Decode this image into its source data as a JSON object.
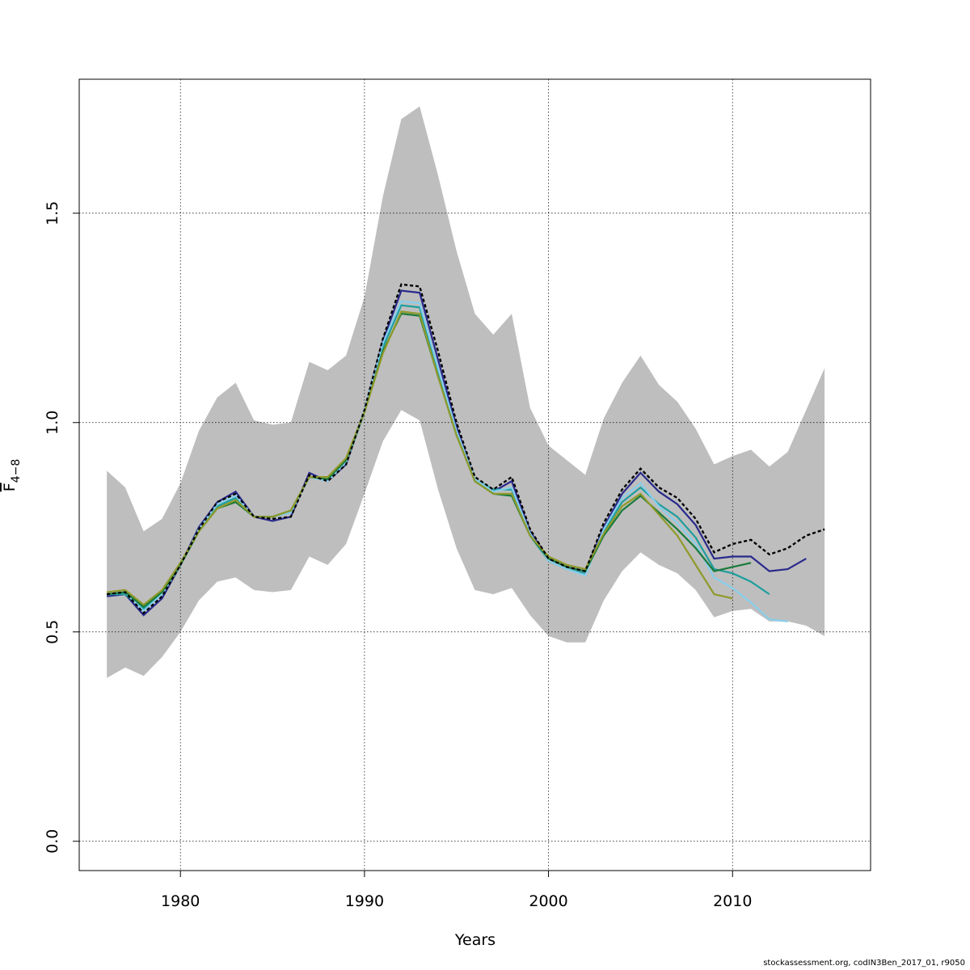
{
  "chart_data": {
    "type": "line",
    "title": "",
    "xlabel": "Years",
    "ylabel_main": "F",
    "ylabel_sub": "4−8",
    "xlim": [
      1974.5,
      2017.5
    ],
    "ylim": [
      -0.07,
      1.82
    ],
    "x_ticks": [
      1980,
      1990,
      2000,
      2010
    ],
    "x_tick_labels": [
      "1980",
      "1990",
      "2000",
      "2010"
    ],
    "y_ticks": [
      0.0,
      0.5,
      1.0,
      1.5
    ],
    "y_tick_labels": [
      "0.0",
      "0.5",
      "1.0",
      "1.5"
    ],
    "grid": true,
    "confidence_band": {
      "color": "#bebebe",
      "x": [
        1976,
        1977,
        1978,
        1979,
        1980,
        1981,
        1982,
        1983,
        1984,
        1985,
        1986,
        1987,
        1988,
        1989,
        1990,
        1991,
        1992,
        1993,
        1994,
        1995,
        1996,
        1997,
        1998,
        1999,
        2000,
        2001,
        2002,
        2003,
        2004,
        2005,
        2006,
        2007,
        2008,
        2009,
        2010,
        2011,
        2012,
        2013,
        2014,
        2015
      ],
      "upper": [
        0.885,
        0.845,
        0.74,
        0.77,
        0.855,
        0.98,
        1.06,
        1.095,
        1.005,
        0.995,
        1.0,
        1.145,
        1.125,
        1.16,
        1.3,
        1.54,
        1.725,
        1.755,
        1.59,
        1.41,
        1.26,
        1.21,
        1.26,
        1.035,
        0.945,
        0.91,
        0.875,
        1.01,
        1.095,
        1.16,
        1.09,
        1.05,
        0.985,
        0.9,
        0.92,
        0.935,
        0.895,
        0.93,
        1.03,
        1.13
      ],
      "lower": [
        0.39,
        0.415,
        0.395,
        0.44,
        0.5,
        0.575,
        0.62,
        0.63,
        0.6,
        0.595,
        0.6,
        0.68,
        0.66,
        0.71,
        0.83,
        0.955,
        1.03,
        1.005,
        0.84,
        0.7,
        0.6,
        0.59,
        0.605,
        0.54,
        0.49,
        0.475,
        0.475,
        0.575,
        0.645,
        0.69,
        0.66,
        0.64,
        0.6,
        0.535,
        0.55,
        0.555,
        0.525,
        0.525,
        0.515,
        0.49
      ]
    },
    "series": [
      {
        "color": "#000000",
        "dashed": true,
        "values_x": [
          1976,
          1977,
          1978,
          1979,
          1980,
          1981,
          1982,
          1983,
          1984,
          1985,
          1986,
          1987,
          1988,
          1989,
          1990,
          1991,
          1992,
          1993,
          1994,
          1995,
          1996,
          1997,
          1998,
          1999,
          2000,
          2001,
          2002,
          2003,
          2004,
          2005,
          2006,
          2007,
          2008,
          2009,
          2010,
          2011,
          2012,
          2013,
          2014,
          2015
        ],
        "values_y": [
          0.59,
          0.595,
          0.545,
          0.585,
          0.66,
          0.745,
          0.81,
          0.83,
          0.775,
          0.77,
          0.775,
          0.875,
          0.86,
          0.9,
          1.03,
          1.2,
          1.33,
          1.325,
          1.17,
          1.0,
          0.87,
          0.84,
          0.87,
          0.745,
          0.675,
          0.655,
          0.645,
          0.76,
          0.84,
          0.89,
          0.845,
          0.82,
          0.77,
          0.69,
          0.71,
          0.72,
          0.685,
          0.7,
          0.73,
          0.745
        ]
      },
      {
        "color": "#2a2a8c",
        "dashed": false,
        "values_x": [
          1976,
          1977,
          1978,
          1979,
          1980,
          1981,
          1982,
          1983,
          1984,
          1985,
          1986,
          1987,
          1988,
          1989,
          1990,
          1991,
          1992,
          1993,
          1994,
          1995,
          1996,
          1997,
          1998,
          1999,
          2000,
          2001,
          2002,
          2003,
          2004,
          2005,
          2006,
          2007,
          2008,
          2009,
          2010,
          2011,
          2012,
          2013,
          2014
        ],
        "values_y": [
          0.585,
          0.59,
          0.54,
          0.58,
          0.66,
          0.75,
          0.81,
          0.835,
          0.775,
          0.765,
          0.775,
          0.88,
          0.86,
          0.9,
          1.03,
          1.195,
          1.315,
          1.31,
          1.15,
          0.99,
          0.865,
          0.835,
          0.86,
          0.74,
          0.675,
          0.655,
          0.645,
          0.75,
          0.83,
          0.88,
          0.835,
          0.805,
          0.755,
          0.675,
          0.68,
          0.68,
          0.645,
          0.65,
          0.675
        ]
      },
      {
        "color": "#1e9e9e",
        "dashed": false,
        "values_x": [
          1976,
          1977,
          1978,
          1979,
          1980,
          1981,
          1982,
          1983,
          1984,
          1985,
          1986,
          1987,
          1988,
          1989,
          1990,
          1991,
          1992,
          1993,
          1994,
          1995,
          1996,
          1997,
          1998,
          1999,
          2000,
          2001,
          2002,
          2003,
          2004,
          2005,
          2006,
          2007,
          2008,
          2009,
          2010,
          2011,
          2012
        ],
        "values_y": [
          0.59,
          0.59,
          0.555,
          0.59,
          0.66,
          0.745,
          0.8,
          0.82,
          0.775,
          0.775,
          0.785,
          0.87,
          0.865,
          0.905,
          1.025,
          1.18,
          1.28,
          1.275,
          1.12,
          0.97,
          0.865,
          0.84,
          0.84,
          0.73,
          0.67,
          0.65,
          0.64,
          0.74,
          0.81,
          0.845,
          0.805,
          0.775,
          0.725,
          0.65,
          0.64,
          0.62,
          0.59
        ]
      },
      {
        "color": "#87ceeb",
        "dashed": false,
        "values_x": [
          1976,
          1977,
          1978,
          1979,
          1980,
          1981,
          1982,
          1983,
          1984,
          1985,
          1986,
          1987,
          1988,
          1989,
          1990,
          1991,
          1992,
          1993,
          1994,
          1995,
          1996,
          1997,
          1998,
          1999,
          2000,
          2001,
          2002,
          2003,
          2004,
          2005,
          2006,
          2007,
          2008,
          2009,
          2010,
          2011,
          2012,
          2013
        ],
        "values_y": [
          0.59,
          0.595,
          0.55,
          0.59,
          0.66,
          0.745,
          0.805,
          0.825,
          0.775,
          0.775,
          0.785,
          0.87,
          0.86,
          0.905,
          1.03,
          1.19,
          1.29,
          1.285,
          1.13,
          0.98,
          0.865,
          0.835,
          0.845,
          0.735,
          0.67,
          0.65,
          0.635,
          0.745,
          0.82,
          0.855,
          0.8,
          0.76,
          0.71,
          0.63,
          0.605,
          0.57,
          0.53,
          0.525
        ]
      },
      {
        "color": "#1a7a3a",
        "dashed": false,
        "values_x": [
          1976,
          1977,
          1978,
          1979,
          1980,
          1981,
          1982,
          1983,
          1984,
          1985,
          1986,
          1987,
          1988,
          1989,
          1990,
          1991,
          1992,
          1993,
          1994,
          1995,
          1996,
          1997,
          1998,
          1999,
          2000,
          2001,
          2002,
          2003,
          2004,
          2005,
          2006,
          2007,
          2008,
          2009,
          2010,
          2011
        ],
        "values_y": [
          0.59,
          0.595,
          0.56,
          0.595,
          0.66,
          0.74,
          0.795,
          0.81,
          0.775,
          0.775,
          0.79,
          0.87,
          0.865,
          0.91,
          1.025,
          1.17,
          1.26,
          1.255,
          1.11,
          0.97,
          0.86,
          0.83,
          0.825,
          0.73,
          0.675,
          0.655,
          0.645,
          0.73,
          0.79,
          0.825,
          0.785,
          0.745,
          0.7,
          0.645,
          0.655,
          0.665
        ]
      },
      {
        "color": "#8f9a2a",
        "dashed": false,
        "values_x": [
          1976,
          1977,
          1978,
          1979,
          1980,
          1981,
          1982,
          1983,
          1984,
          1985,
          1986,
          1987,
          1988,
          1989,
          1990,
          1991,
          1992,
          1993,
          1994,
          1995,
          1996,
          1997,
          1998,
          1999,
          2000,
          2001,
          2002,
          2003,
          2004,
          2005,
          2006,
          2007,
          2008,
          2009,
          2010
        ],
        "values_y": [
          0.595,
          0.6,
          0.565,
          0.6,
          0.665,
          0.74,
          0.795,
          0.815,
          0.775,
          0.775,
          0.79,
          0.87,
          0.87,
          0.915,
          1.025,
          1.165,
          1.265,
          1.26,
          1.11,
          0.97,
          0.86,
          0.83,
          0.83,
          0.73,
          0.68,
          0.66,
          0.65,
          0.735,
          0.8,
          0.83,
          0.78,
          0.73,
          0.66,
          0.59,
          0.58
        ]
      }
    ]
  },
  "footer": {
    "note": "stockassessment.org, codIN3Ben_2017_01, r9050"
  }
}
